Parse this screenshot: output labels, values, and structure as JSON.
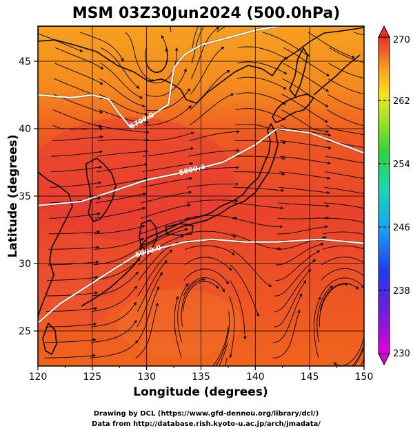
{
  "title": "MSM 03Z30Jun2024 (500.0hPa)",
  "xlabel": "Longitude (degrees)",
  "ylabel": "Latitude  (degrees)",
  "x_ticks": [
    "120",
    "125",
    "130",
    "135",
    "140",
    "145",
    "150"
  ],
  "y_ticks": [
    "25",
    "30",
    "35",
    "40",
    "45"
  ],
  "colorbar_ticks": [
    "270",
    "262",
    "254",
    "246",
    "238",
    "230"
  ],
  "contour_labels": [
    "5700.0",
    "5800.0",
    "5900.0"
  ],
  "credits": [
    "Drawing by DCL (https://www.gfd-dennou.org/library/dcl/)",
    "Data from http://database.rish.kyoto-u.ac.jp/arch/jmadata/"
  ],
  "chart_data": {
    "type": "heatmap",
    "title": "MSM 03Z30Jun2024 (500.0hPa)",
    "xlabel": "Longitude (degrees)",
    "ylabel": "Latitude  (degrees)",
    "xlim": [
      120,
      150
    ],
    "ylim": [
      22.4,
      47.6
    ],
    "colorbar": {
      "min": 230,
      "max": 270,
      "ticks": [
        270,
        262,
        254,
        246,
        238,
        230
      ]
    },
    "colors": {
      "warm_high": "#e83a2c",
      "warm_mid": "#f06a1a",
      "warm_low": "#f6b21e",
      "contour": "#ffffff",
      "streamline": "#000000"
    },
    "height_contours": [
      {
        "label": "5700.0",
        "value": 5700,
        "path": [
          [
            120,
            42.5
          ],
          [
            123,
            42.3
          ],
          [
            125,
            42.5
          ],
          [
            126.5,
            42.2
          ],
          [
            127.3,
            41.3
          ],
          [
            128.5,
            40.1
          ],
          [
            130.5,
            41.0
          ],
          [
            132,
            41.8
          ],
          [
            132.5,
            44.5
          ],
          [
            133.5,
            45.5
          ],
          [
            135,
            46.2
          ],
          [
            140,
            47.3
          ],
          [
            142.2,
            47.6
          ]
        ]
      },
      {
        "label": "5800.0",
        "value": 5800,
        "path": [
          [
            120,
            34.3
          ],
          [
            124,
            34.6
          ],
          [
            127,
            35.4
          ],
          [
            130,
            36.2
          ],
          [
            133,
            36.7
          ],
          [
            137,
            37.5
          ],
          [
            140,
            38.8
          ],
          [
            142,
            40.0
          ],
          [
            145,
            39.7
          ],
          [
            148,
            38.8
          ],
          [
            150,
            38.2
          ]
        ]
      },
      {
        "label": "5900.0",
        "value": 5900,
        "path": [
          [
            120,
            25.6
          ],
          [
            122,
            27.0
          ],
          [
            124.5,
            28.3
          ],
          [
            127,
            29.6
          ],
          [
            129,
            30.6
          ],
          [
            131,
            31.1
          ],
          [
            133.5,
            31.6
          ],
          [
            136,
            31.8
          ],
          [
            139,
            31.6
          ],
          [
            142,
            31.6
          ],
          [
            146,
            31.8
          ],
          [
            150,
            31.5
          ]
        ]
      }
    ],
    "wind_field_features": [
      {
        "kind": "anticyclone",
        "lon": 135.2,
        "lat": 27.3
      },
      {
        "kind": "anticyclone",
        "lon": 148.2,
        "lat": 26.8
      },
      {
        "kind": "trough",
        "lon": 131.3,
        "lat": 44.0
      }
    ]
  }
}
